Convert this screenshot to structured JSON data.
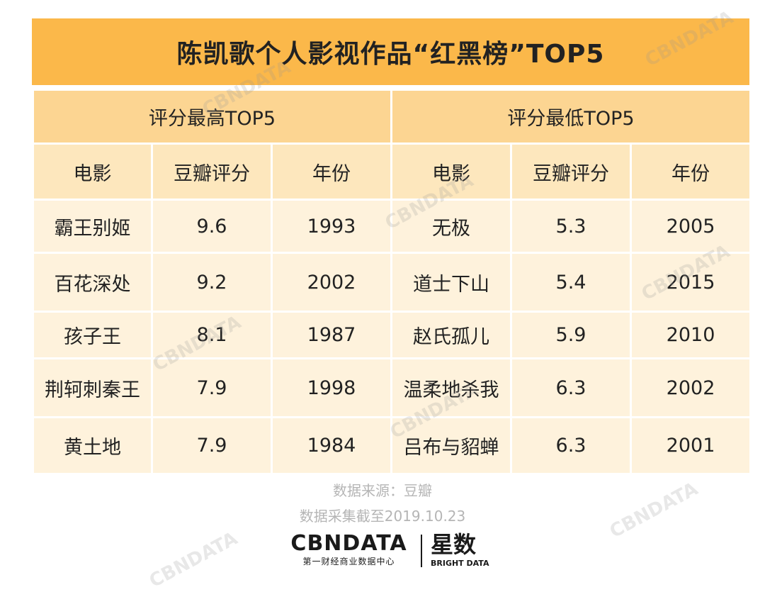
{
  "title": "陈凯歌个人影视作品“红黑榜”TOP5",
  "groups": {
    "high": "评分最高TOP5",
    "low": "评分最低TOP5"
  },
  "columns": {
    "movie": "电影",
    "rating": "豆瓣评分",
    "year": "年份"
  },
  "top5_high": [
    {
      "movie": "霸王别姬",
      "rating": "9.6",
      "year": "1993"
    },
    {
      "movie": "百花深处",
      "rating": "9.2",
      "year": "2002"
    },
    {
      "movie": "孩子王",
      "rating": "8.1",
      "year": "1987"
    },
    {
      "movie": "荆轲刺秦王",
      "rating": "7.9",
      "year": "1998"
    },
    {
      "movie": "黄土地",
      "rating": "7.9",
      "year": "1984"
    }
  ],
  "top5_low": [
    {
      "movie": "无极",
      "rating": "5.3",
      "year": "2005"
    },
    {
      "movie": "道士下山",
      "rating": "5.4",
      "year": "2015"
    },
    {
      "movie": "赵氏孤儿",
      "rating": "5.9",
      "year": "2010"
    },
    {
      "movie": "温柔地杀我",
      "rating": "6.3",
      "year": "2002"
    },
    {
      "movie": "吕布与貂蝉",
      "rating": "6.3",
      "year": "2001"
    }
  ],
  "footer": {
    "source": "数据来源：豆瓣",
    "cutoff": "数据采集截至2019.10.23"
  },
  "logos": {
    "cbndata_main": "CBNDATA",
    "cbndata_sub": "第一财经商业数据中心",
    "bright_main": "星数",
    "bright_sub": "BRIGHT DATA"
  },
  "watermark": "CBNDATA",
  "colors": {
    "title_bg": "#fbb84a",
    "group_bg": "#fcd592",
    "header_bg": "#fde7bd",
    "row_bg": "#fef2dc"
  }
}
